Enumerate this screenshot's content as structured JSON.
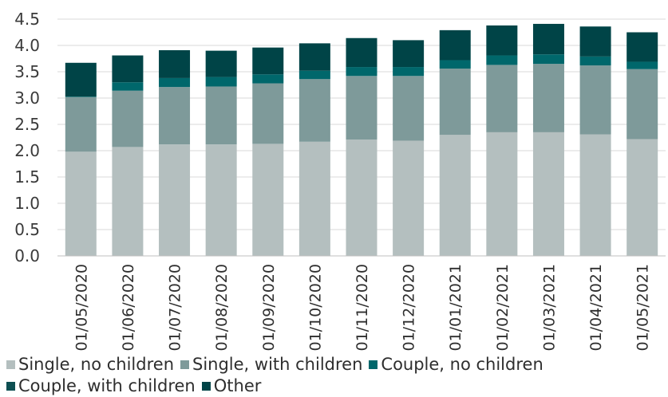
{
  "chart_data": {
    "type": "bar",
    "stacked": true,
    "categories": [
      "01/05/2020",
      "01/06/2020",
      "01/07/2020",
      "01/08/2020",
      "01/09/2020",
      "01/10/2020",
      "01/11/2020",
      "01/12/2020",
      "01/01/2021",
      "01/02/2021",
      "01/03/2021",
      "01/04/2021",
      "01/05/2021"
    ],
    "series": [
      {
        "name": "Single, no children",
        "color": "#b4bfbf",
        "values": [
          1.98,
          2.07,
          2.12,
          2.12,
          2.13,
          2.17,
          2.21,
          2.19,
          2.3,
          2.35,
          2.35,
          2.31,
          2.22
        ]
      },
      {
        "name": "Single, with children",
        "color": "#7e9a9a",
        "values": [
          1.04,
          1.07,
          1.09,
          1.1,
          1.15,
          1.19,
          1.21,
          1.23,
          1.26,
          1.28,
          1.3,
          1.31,
          1.33
        ]
      },
      {
        "name": "Couple, no children",
        "color": "#00676b",
        "values": [
          0.01,
          0.16,
          0.17,
          0.18,
          0.17,
          0.16,
          0.17,
          0.17,
          0.16,
          0.18,
          0.18,
          0.17,
          0.14
        ]
      },
      {
        "name": "Couple, with children",
        "color": "#0d4f52",
        "values": [
          0.0,
          0.0,
          0.0,
          0.0,
          0.0,
          0.0,
          0.0,
          0.0,
          0.0,
          0.0,
          0.0,
          0.0,
          0.0
        ]
      },
      {
        "name": "Other",
        "color": "#004447",
        "values": [
          0.64,
          0.51,
          0.53,
          0.5,
          0.51,
          0.52,
          0.55,
          0.51,
          0.57,
          0.57,
          0.58,
          0.57,
          0.56
        ]
      }
    ],
    "ylim": [
      0,
      4.5
    ],
    "yticks": [
      "0.0",
      "0.5",
      "1.0",
      "1.5",
      "2.0",
      "2.5",
      "3.0",
      "3.5",
      "4.0",
      "4.5"
    ],
    "grid": true,
    "legend_position": "bottom"
  }
}
